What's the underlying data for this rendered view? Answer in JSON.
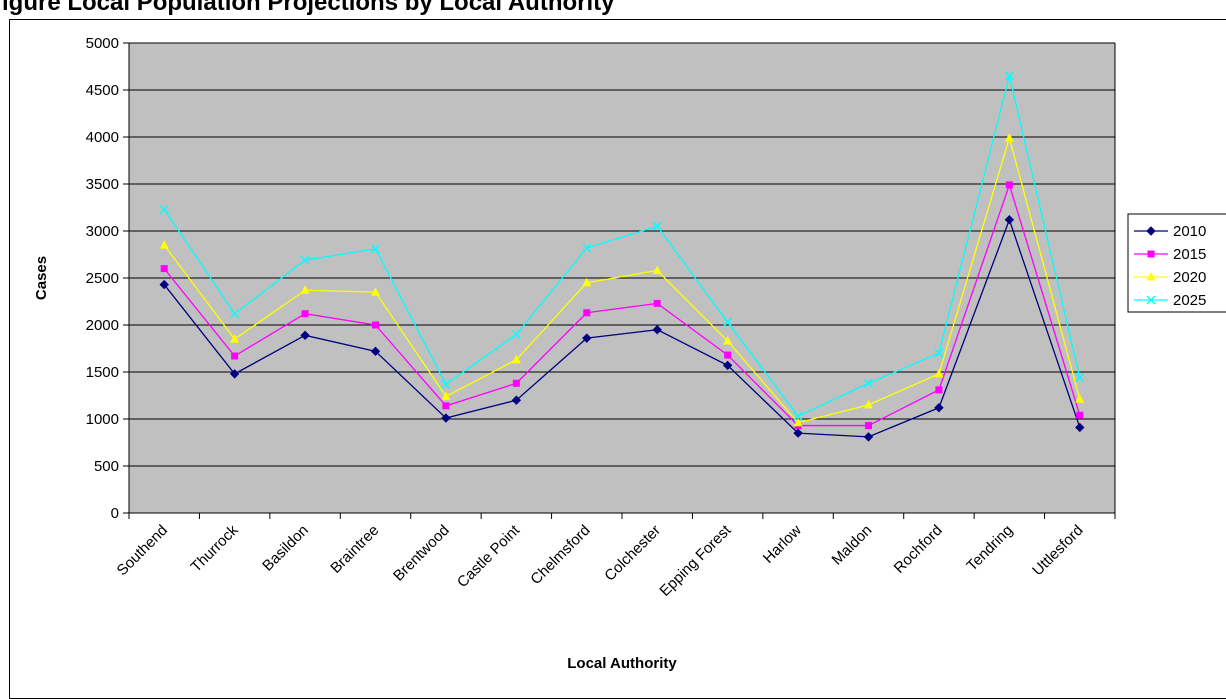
{
  "page_title": "igure    Local Population Projections by Local Authority",
  "chart_data": {
    "type": "line",
    "title": "",
    "xlabel": "Local Authority",
    "ylabel": "Cases",
    "ylim": [
      0,
      5000
    ],
    "ytick_step": 500,
    "grid": true,
    "legend_position": "right",
    "categories": [
      "Southend",
      "Thurrock",
      "Basildon",
      "Braintree",
      "Brentwood",
      "Castle Point",
      "Chelmsford",
      "Colchester",
      "Epping Forest",
      "Harlow",
      "Maldon",
      "Rochford",
      "Tendring",
      "Uttlesford"
    ],
    "series": [
      {
        "name": "2010",
        "color": "#000080",
        "marker": "diamond",
        "values": [
          2430,
          1480,
          1890,
          1720,
          1010,
          1200,
          1860,
          1950,
          1570,
          850,
          810,
          1120,
          3120,
          910
        ]
      },
      {
        "name": "2015",
        "color": "#ff00ff",
        "marker": "square",
        "values": [
          2600,
          1670,
          2120,
          2000,
          1140,
          1380,
          2130,
          2230,
          1680,
          930,
          930,
          1310,
          3490,
          1040
        ]
      },
      {
        "name": "2020",
        "color": "#ffff00",
        "marker": "triangle",
        "values": [
          2850,
          1850,
          2370,
          2350,
          1240,
          1630,
          2450,
          2580,
          1830,
          960,
          1150,
          1480,
          3990,
          1210
        ]
      },
      {
        "name": "2025",
        "color": "#00ffff",
        "marker": "x",
        "values": [
          3230,
          2120,
          2690,
          2810,
          1370,
          1900,
          2820,
          3050,
          2030,
          1030,
          1380,
          1700,
          4650,
          1440
        ]
      }
    ],
    "colors": {
      "plot_background": "#c0c0c0",
      "gridline": "#000000"
    }
  }
}
